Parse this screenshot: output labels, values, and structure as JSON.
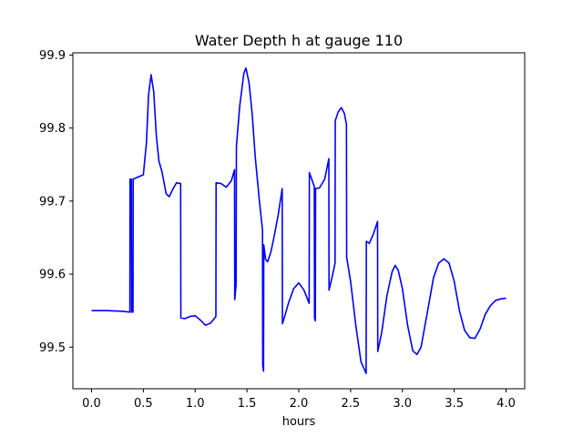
{
  "chart_data": {
    "type": "line",
    "title": "Water Depth h at gauge 110",
    "xlabel": "hours",
    "ylabel": "",
    "xlim": [
      -0.18,
      4.18
    ],
    "ylim": [
      99.443,
      99.903
    ],
    "xticks": [
      0.0,
      0.5,
      1.0,
      1.5,
      2.0,
      2.5,
      3.0,
      3.5,
      4.0
    ],
    "xtick_labels": [
      "0.0",
      "0.5",
      "1.0",
      "1.5",
      "2.0",
      "2.5",
      "3.0",
      "3.5",
      "4.0"
    ],
    "yticks": [
      99.5,
      99.6,
      99.7,
      99.8,
      99.9
    ],
    "ytick_labels": [
      "99.5",
      "99.6",
      "99.7",
      "99.8",
      "99.9"
    ],
    "grid": false,
    "legend": "none",
    "series_color": "#0000ff",
    "series": [
      {
        "points": [
          [
            0.0,
            99.55
          ],
          [
            0.15,
            99.55
          ],
          [
            0.3,
            99.549
          ],
          [
            0.37,
            99.548
          ],
          [
            0.372,
            99.73
          ],
          [
            0.385,
            99.73
          ],
          [
            0.387,
            99.548
          ],
          [
            0.4,
            99.548
          ],
          [
            0.402,
            99.73
          ],
          [
            0.45,
            99.733
          ],
          [
            0.5,
            99.736
          ],
          [
            0.53,
            99.78
          ],
          [
            0.55,
            99.845
          ],
          [
            0.575,
            99.873
          ],
          [
            0.6,
            99.85
          ],
          [
            0.625,
            99.79
          ],
          [
            0.65,
            99.755
          ],
          [
            0.68,
            99.74
          ],
          [
            0.72,
            99.71
          ],
          [
            0.75,
            99.706
          ],
          [
            0.78,
            99.715
          ],
          [
            0.82,
            99.725
          ],
          [
            0.86,
            99.724
          ],
          [
            0.862,
            99.54
          ],
          [
            0.9,
            99.539
          ],
          [
            0.95,
            99.542
          ],
          [
            1.0,
            99.543
          ],
          [
            1.05,
            99.537
          ],
          [
            1.1,
            99.53
          ],
          [
            1.15,
            99.533
          ],
          [
            1.2,
            99.542
          ],
          [
            1.202,
            99.725
          ],
          [
            1.25,
            99.724
          ],
          [
            1.3,
            99.719
          ],
          [
            1.35,
            99.728
          ],
          [
            1.38,
            99.743
          ],
          [
            1.382,
            99.565
          ],
          [
            1.395,
            99.585
          ],
          [
            1.398,
            99.775
          ],
          [
            1.43,
            99.83
          ],
          [
            1.47,
            99.875
          ],
          [
            1.49,
            99.882
          ],
          [
            1.52,
            99.862
          ],
          [
            1.55,
            99.82
          ],
          [
            1.58,
            99.76
          ],
          [
            1.62,
            99.7
          ],
          [
            1.65,
            99.66
          ],
          [
            1.652,
            99.475
          ],
          [
            1.66,
            99.467
          ],
          [
            1.662,
            99.64
          ],
          [
            1.68,
            99.62
          ],
          [
            1.7,
            99.617
          ],
          [
            1.73,
            99.63
          ],
          [
            1.76,
            99.65
          ],
          [
            1.8,
            99.68
          ],
          [
            1.84,
            99.717
          ],
          [
            1.842,
            99.532
          ],
          [
            1.87,
            99.545
          ],
          [
            1.9,
            99.56
          ],
          [
            1.95,
            99.58
          ],
          [
            2.0,
            99.588
          ],
          [
            2.05,
            99.578
          ],
          [
            2.1,
            99.56
          ],
          [
            2.102,
            99.739
          ],
          [
            2.15,
            99.72
          ],
          [
            2.152,
            99.54
          ],
          [
            2.16,
            99.536
          ],
          [
            2.162,
            99.717
          ],
          [
            2.2,
            99.718
          ],
          [
            2.25,
            99.73
          ],
          [
            2.29,
            99.758
          ],
          [
            2.292,
            99.578
          ],
          [
            2.32,
            99.595
          ],
          [
            2.35,
            99.615
          ],
          [
            2.352,
            99.81
          ],
          [
            2.38,
            99.822
          ],
          [
            2.41,
            99.828
          ],
          [
            2.44,
            99.82
          ],
          [
            2.46,
            99.805
          ],
          [
            2.462,
            99.623
          ],
          [
            2.5,
            99.59
          ],
          [
            2.55,
            99.53
          ],
          [
            2.6,
            99.48
          ],
          [
            2.65,
            99.464
          ],
          [
            2.652,
            99.645
          ],
          [
            2.68,
            99.642
          ],
          [
            2.72,
            99.655
          ],
          [
            2.76,
            99.672
          ],
          [
            2.762,
            99.494
          ],
          [
            2.8,
            99.52
          ],
          [
            2.85,
            99.57
          ],
          [
            2.9,
            99.603
          ],
          [
            2.93,
            99.612
          ],
          [
            2.96,
            99.605
          ],
          [
            3.0,
            99.58
          ],
          [
            3.05,
            99.53
          ],
          [
            3.1,
            99.495
          ],
          [
            3.14,
            99.49
          ],
          [
            3.18,
            99.5
          ],
          [
            3.25,
            99.555
          ],
          [
            3.3,
            99.595
          ],
          [
            3.35,
            99.615
          ],
          [
            3.4,
            99.621
          ],
          [
            3.45,
            99.615
          ],
          [
            3.5,
            99.59
          ],
          [
            3.55,
            99.55
          ],
          [
            3.6,
            99.523
          ],
          [
            3.65,
            99.513
          ],
          [
            3.7,
            99.512
          ],
          [
            3.75,
            99.525
          ],
          [
            3.8,
            99.545
          ],
          [
            3.85,
            99.557
          ],
          [
            3.9,
            99.564
          ],
          [
            3.95,
            99.566
          ],
          [
            4.0,
            99.567
          ]
        ]
      }
    ]
  }
}
